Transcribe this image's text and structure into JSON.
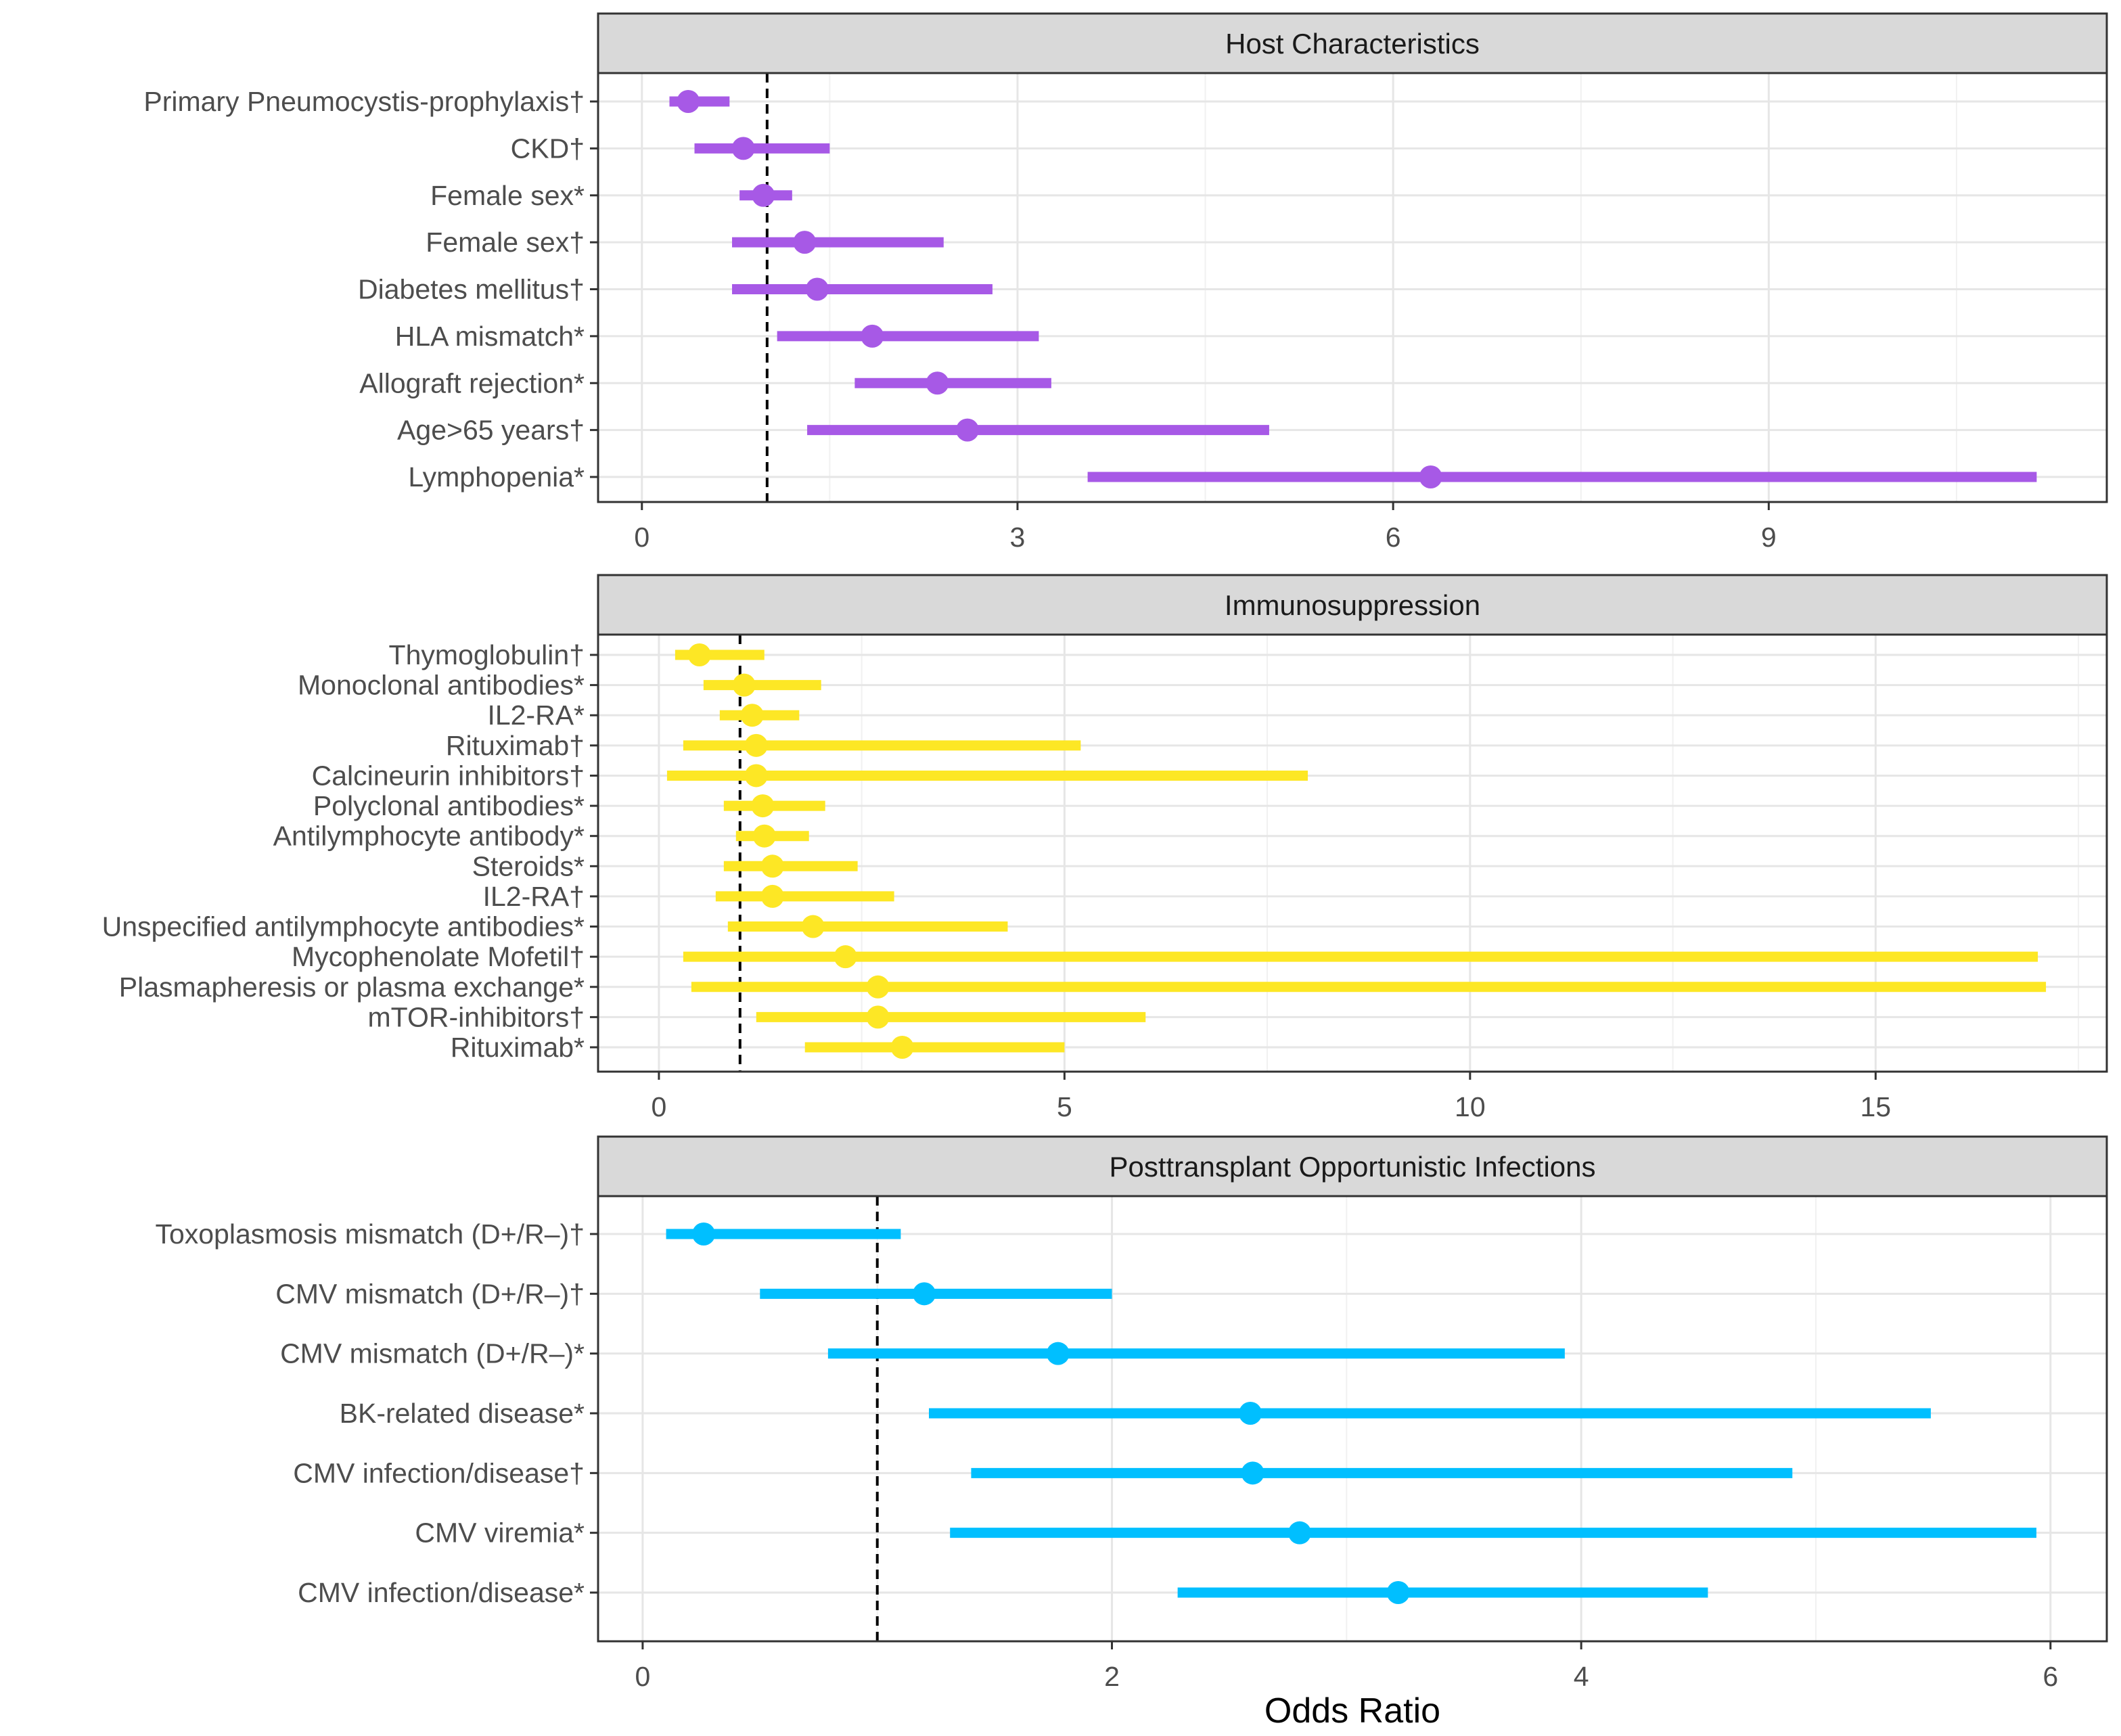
{
  "chart_data": [
    {
      "type": "forest",
      "title": "Host Characteristics",
      "color": "#A759E6",
      "xlim": [
        -0.35,
        11.7
      ],
      "xticks": [
        0,
        3,
        6,
        9
      ],
      "xtick_labels": [
        "0",
        "3",
        "6",
        "9"
      ],
      "reference_line": 1,
      "rows": [
        {
          "label": "Primary Pneumocystis-prophylaxis†",
          "or": 0.37,
          "lo": 0.22,
          "hi": 0.7
        },
        {
          "label": "CKD†",
          "or": 0.81,
          "lo": 0.42,
          "hi": 1.5
        },
        {
          "label": "Female sex*",
          "or": 0.97,
          "lo": 0.78,
          "hi": 1.2
        },
        {
          "label": "Female sex†",
          "or": 1.3,
          "lo": 0.72,
          "hi": 2.41
        },
        {
          "label": "Diabetes mellitus†",
          "or": 1.4,
          "lo": 0.72,
          "hi": 2.8
        },
        {
          "label": "HLA mismatch*",
          "or": 1.84,
          "lo": 1.08,
          "hi": 3.17
        },
        {
          "label": "Allograft rejection*",
          "or": 2.36,
          "lo": 1.7,
          "hi": 3.27
        },
        {
          "label": "Age>65 years†",
          "or": 2.6,
          "lo": 1.32,
          "hi": 5.01
        },
        {
          "label": "Lymphopenia*",
          "or": 6.3,
          "lo": 3.56,
          "hi": 11.14
        }
      ]
    },
    {
      "type": "forest",
      "title": "Immunosuppression",
      "color": "#FDE725",
      "xlim": [
        -0.75,
        17.85
      ],
      "xticks": [
        0,
        5,
        10,
        15
      ],
      "xtick_labels": [
        "0",
        "5",
        "10",
        "15"
      ],
      "reference_line": 1,
      "rows": [
        {
          "label": "Thymoglobulin†",
          "or": 0.5,
          "lo": 0.2,
          "hi": 1.3
        },
        {
          "label": "Monoclonal antibodies*",
          "or": 1.05,
          "lo": 0.55,
          "hi": 2.0
        },
        {
          "label": "IL2-RA*",
          "or": 1.15,
          "lo": 0.75,
          "hi": 1.73
        },
        {
          "label": "Rituximab†",
          "or": 1.2,
          "lo": 0.3,
          "hi": 5.2
        },
        {
          "label": "Calcineurin inhibitors†",
          "or": 1.2,
          "lo": 0.1,
          "hi": 8.0
        },
        {
          "label": "Polyclonal antibodies*",
          "or": 1.28,
          "lo": 0.8,
          "hi": 2.05
        },
        {
          "label": "Antilymphocyte antibody*",
          "or": 1.3,
          "lo": 0.95,
          "hi": 1.85
        },
        {
          "label": "Steroids*",
          "or": 1.4,
          "lo": 0.8,
          "hi": 2.45
        },
        {
          "label": "IL2-RA†",
          "or": 1.4,
          "lo": 0.7,
          "hi": 2.9
        },
        {
          "label": "Unspecified antilymphocyte antibodies*",
          "or": 1.9,
          "lo": 0.85,
          "hi": 4.3
        },
        {
          "label": "Mycophenolate Mofetil†",
          "or": 2.3,
          "lo": 0.3,
          "hi": 17.0
        },
        {
          "label": "Plasmapheresis or plasma exchange*",
          "or": 2.7,
          "lo": 0.4,
          "hi": 17.1
        },
        {
          "label": "mTOR-inhibitors†",
          "or": 2.7,
          "lo": 1.2,
          "hi": 6.0
        },
        {
          "label": "Rituximab*",
          "or": 3.0,
          "lo": 1.8,
          "hi": 5.0
        }
      ]
    },
    {
      "type": "forest",
      "title": "Posttransplant Opportunistic Infections",
      "color": "#00BFFF",
      "xlim": [
        -0.19,
        6.24
      ],
      "xticks": [
        0,
        2,
        4,
        6
      ],
      "xtick_labels": [
        "0",
        "2",
        "4",
        "6"
      ],
      "reference_line": 1,
      "xlabel": "Odds Ratio",
      "rows": [
        {
          "label": "Toxoplasmosis mismatch (D+/R–)†",
          "or": 0.26,
          "lo": 0.1,
          "hi": 1.1
        },
        {
          "label": "CMV mismatch (D+/R–)†",
          "or": 1.2,
          "lo": 0.5,
          "hi": 2.0
        },
        {
          "label": "CMV mismatch (D+/R–)*",
          "or": 1.77,
          "lo": 0.79,
          "hi": 3.93
        },
        {
          "label": "BK-related disease*",
          "or": 2.59,
          "lo": 1.22,
          "hi": 5.49
        },
        {
          "label": "CMV infection/disease†",
          "or": 2.6,
          "lo": 1.4,
          "hi": 4.9
        },
        {
          "label": "CMV viremia*",
          "or": 2.8,
          "lo": 1.31,
          "hi": 5.94
        },
        {
          "label": "CMV infection/disease*",
          "or": 3.22,
          "lo": 2.28,
          "hi": 4.54
        }
      ]
    }
  ]
}
